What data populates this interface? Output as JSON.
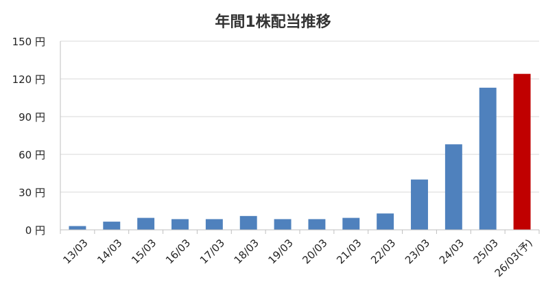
{
  "chart_data": {
    "type": "bar",
    "title": "年間1株配当推移",
    "categories": [
      "13/03",
      "14/03",
      "15/03",
      "16/03",
      "17/03",
      "18/03",
      "19/03",
      "20/03",
      "21/03",
      "22/03",
      "23/03",
      "24/03",
      "25/03",
      "26/03(予)"
    ],
    "values": [
      3,
      6.5,
      9.5,
      8.5,
      8.5,
      11,
      8.5,
      8.5,
      9.5,
      13,
      40,
      68,
      113,
      124
    ],
    "bar_colors": [
      "#4F81BD",
      "#4F81BD",
      "#4F81BD",
      "#4F81BD",
      "#4F81BD",
      "#4F81BD",
      "#4F81BD",
      "#4F81BD",
      "#4F81BD",
      "#4F81BD",
      "#4F81BD",
      "#4F81BD",
      "#4F81BD",
      "#C00000"
    ],
    "ylim": [
      0,
      150
    ],
    "yticks": [
      0,
      30,
      60,
      90,
      120,
      150
    ],
    "ytick_labels": [
      "0 円",
      "30 円",
      "60 円",
      "90 円",
      "120 円",
      "150 円"
    ],
    "grid": true,
    "grid_color": "#D9D9D9",
    "legend": "none"
  }
}
